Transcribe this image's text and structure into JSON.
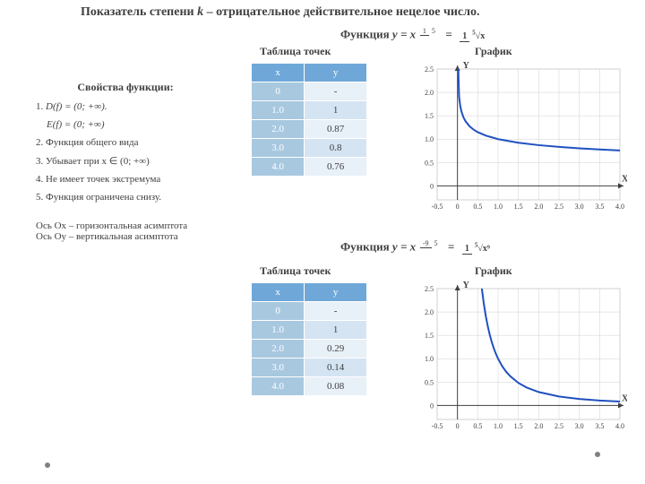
{
  "title_prefix": "Показатель степени ",
  "title_var": "k",
  "title_suffix": " – отрицательное действительное нецелое число.",
  "properties": {
    "heading": "Свойства функции:",
    "p1_label": "1. ",
    "p1_d": "D(f) = (0; +∞).",
    "p1_e": "E(f) = (0; +∞)",
    "p2": "2. Функция общего вида",
    "p3": "3. Убывает при x ∈ (0; +∞)",
    "p4": "4. Не имеет точек экстремума",
    "p5": "5. Функция ограничена снизу.",
    "asym1": "Ось Ox – горизонтальная асимптота",
    "asym2": "Ось Oy – вертикальная асимптота"
  },
  "func1": {
    "label_prefix": "Функция  ",
    "label_y": "y = x",
    "exp_num": "1",
    "exp_den": "5",
    "rhs_num": "1",
    "rhs_den_pre": "5",
    "rhs_den_rad": "√x",
    "table_title": "Таблица точек",
    "graph_title": "График",
    "columns": [
      "x",
      "y"
    ],
    "rows": [
      [
        "0",
        "-"
      ],
      [
        "1.0",
        "1"
      ],
      [
        "2.0",
        "0.87"
      ],
      [
        "3.0",
        "0.8"
      ],
      [
        "4.0",
        "0.76"
      ]
    ],
    "chart": {
      "type": "line",
      "xlim": [
        -0.5,
        4.0
      ],
      "ylim": [
        -0.3,
        2.5
      ],
      "xticks": [
        -0.5,
        0,
        0.5,
        1.0,
        1.5,
        2.0,
        2.5,
        3.0,
        3.5,
        4.0
      ],
      "xtick_labels": [
        "-0.5",
        "0",
        "0.5",
        "1.0",
        "1.5",
        "2.0",
        "2.5",
        "3.0",
        "3.5",
        "4.0"
      ],
      "yticks": [
        0,
        0.5,
        1.0,
        1.5,
        2.0,
        2.5
      ],
      "ytick_labels": [
        "0",
        "0.5",
        "1.0",
        "1.5",
        "2.0",
        "2.5"
      ],
      "grid_color": "#d0d0d0",
      "axis_color": "#404040",
      "line_color": "#2050c0",
      "bg_color": "#ffffff",
      "line_width": 2,
      "tick_fontsize": 8,
      "xlabel": "X",
      "ylabel": "Y",
      "data": [
        [
          0.02,
          2.5
        ],
        [
          0.04,
          1.905
        ],
        [
          0.07,
          1.7
        ],
        [
          0.1,
          1.585
        ],
        [
          0.15,
          1.46
        ],
        [
          0.2,
          1.38
        ],
        [
          0.3,
          1.272
        ],
        [
          0.4,
          1.201
        ],
        [
          0.5,
          1.149
        ],
        [
          0.7,
          1.074
        ],
        [
          1.0,
          1.0
        ],
        [
          1.5,
          0.922
        ],
        [
          2.0,
          0.871
        ],
        [
          2.5,
          0.833
        ],
        [
          3.0,
          0.803
        ],
        [
          3.5,
          0.778
        ],
        [
          4.0,
          0.758
        ]
      ]
    }
  },
  "func2": {
    "label_prefix": "Функция  ",
    "label_y": "y = x",
    "exp_num": "-9",
    "exp_den": "5",
    "rhs_num": "1",
    "rhs_den_pre": "5",
    "rhs_den_rad": "√x⁹",
    "table_title": "Таблица точек",
    "graph_title": "График",
    "columns": [
      "x",
      "y"
    ],
    "rows": [
      [
        "0",
        "-"
      ],
      [
        "1.0",
        "1"
      ],
      [
        "2.0",
        "0.29"
      ],
      [
        "3.0",
        "0.14"
      ],
      [
        "4.0",
        "0.08"
      ]
    ],
    "chart": {
      "type": "line",
      "xlim": [
        -0.5,
        4.0
      ],
      "ylim": [
        -0.3,
        2.5
      ],
      "xticks": [
        -0.5,
        0,
        0.5,
        1.0,
        1.5,
        2.0,
        2.5,
        3.0,
        3.5,
        4.0
      ],
      "xtick_labels": [
        "-0.5",
        "0",
        "0.5",
        "1.0",
        "1.5",
        "2.0",
        "2.5",
        "3.0",
        "3.5",
        "4.0"
      ],
      "yticks": [
        0,
        0.5,
        1.0,
        1.5,
        2.0,
        2.5
      ],
      "ytick_labels": [
        "0",
        "0.5",
        "1.0",
        "1.5",
        "2.0",
        "2.5"
      ],
      "grid_color": "#d0d0d0",
      "axis_color": "#404040",
      "line_color": "#2050c0",
      "bg_color": "#ffffff",
      "line_width": 2,
      "tick_fontsize": 8,
      "xlabel": "X",
      "ylabel": "Y",
      "data": [
        [
          0.6,
          2.5
        ],
        [
          0.65,
          2.17
        ],
        [
          0.7,
          1.9
        ],
        [
          0.75,
          1.68
        ],
        [
          0.8,
          1.495
        ],
        [
          0.85,
          1.34
        ],
        [
          0.9,
          1.209
        ],
        [
          0.95,
          1.097
        ],
        [
          1.0,
          1.0
        ],
        [
          1.1,
          0.842
        ],
        [
          1.2,
          0.72
        ],
        [
          1.3,
          0.624
        ],
        [
          1.5,
          0.482
        ],
        [
          1.7,
          0.385
        ],
        [
          2.0,
          0.287
        ],
        [
          2.5,
          0.192
        ],
        [
          3.0,
          0.138
        ],
        [
          3.5,
          0.105
        ],
        [
          4.0,
          0.083
        ]
      ]
    }
  }
}
